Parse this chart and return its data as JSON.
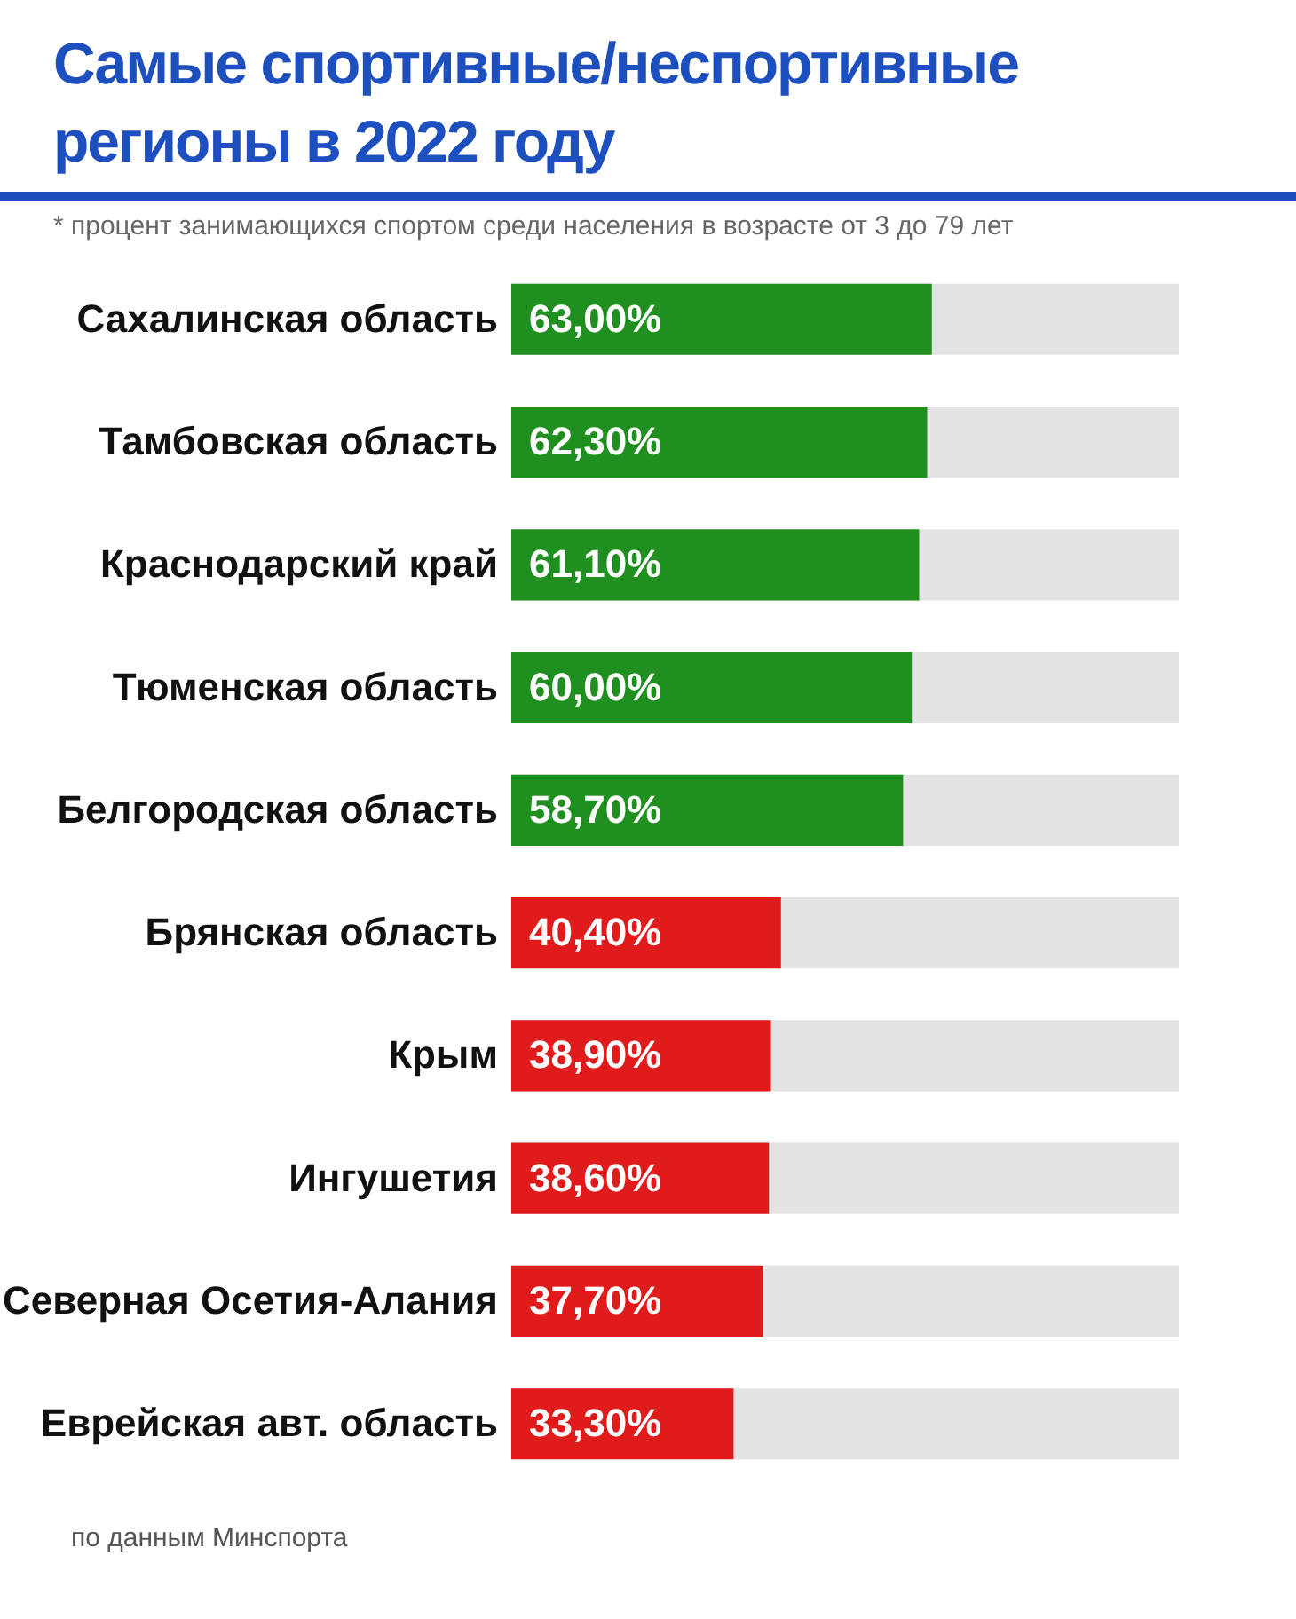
{
  "chart_data": {
    "type": "bar",
    "orientation": "horizontal",
    "title": "Самые спортивные/неспортивные регионы в 2022 году",
    "subtitle": "* процент занимающихся спортом среди населения в возрасте от 3 до 79 лет",
    "annotations": [
      "по данным Минспорта"
    ],
    "categories": [
      "Сахалинская область",
      "Тамбовская область",
      "Краснодарский край",
      "Тюменская область",
      "Белгородская область",
      "Брянская область",
      "Крым",
      "Ингушетия",
      "Северная Осетия-Алания",
      "Еврейская авт. область"
    ],
    "values": [
      63.0,
      62.3,
      61.1,
      60.0,
      58.7,
      40.4,
      38.9,
      38.6,
      37.7,
      33.3
    ],
    "value_labels": [
      "63,00%",
      "62,30%",
      "61,10%",
      "60,00%",
      "58,70%",
      "40,40%",
      "38,90%",
      "38,60%",
      "37,70%",
      "33,30%"
    ],
    "colors": [
      "#1f8f1f",
      "#1f8f1f",
      "#1f8f1f",
      "#1f8f1f",
      "#1f8f1f",
      "#e11b1b",
      "#e11b1b",
      "#e11b1b",
      "#e11b1b",
      "#e11b1b"
    ],
    "xlim": [
      0,
      100
    ],
    "bands": [
      {
        "axis": "x",
        "from": 0,
        "to": 100,
        "color": "#e3e3e3"
      }
    ],
    "tick_labels": "y"
  }
}
